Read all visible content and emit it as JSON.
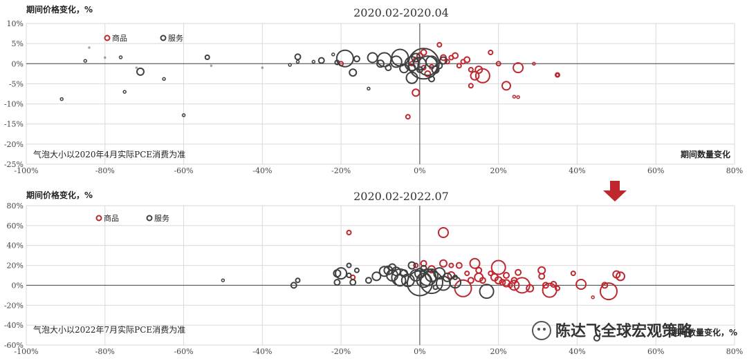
{
  "watermark": "陈达飞全球宏观策略",
  "chart_data": [
    {
      "type": "scatter",
      "title": "2020.02-2020.04",
      "ylabel": "期间价格变化，%",
      "xlabel": "期间数量变化",
      "note": "气泡大小以2020年4月实际PCE消费为准",
      "xlim": [
        -100,
        80
      ],
      "ylim": [
        -25,
        10
      ],
      "xticks": [
        "-100%",
        "-80%",
        "-60%",
        "-40%",
        "-20%",
        "0%",
        "20%",
        "40%",
        "60%",
        "80%"
      ],
      "yticks": [
        "10%",
        "5%",
        "0%",
        "-5%",
        "-10%",
        "-15%",
        "-20%",
        "-25%"
      ],
      "grid": "horizontal",
      "legend_position": "top-left",
      "series": [
        {
          "name": "商品",
          "color": "#c0262d",
          "points": [
            [
              -3,
              -13.2,
              3
            ],
            [
              -1,
              -7.2,
              5
            ],
            [
              1,
              2.8,
              4
            ],
            [
              2,
              -2.5,
              4
            ],
            [
              3,
              -0.8,
              3
            ],
            [
              5,
              4.7,
              3
            ],
            [
              6,
              1.5,
              4
            ],
            [
              7,
              0.5,
              3
            ],
            [
              8,
              1.5,
              3
            ],
            [
              9,
              2,
              4
            ],
            [
              10,
              -0.5,
              3
            ],
            [
              11,
              0.5,
              3
            ],
            [
              12,
              1,
              4
            ],
            [
              13,
              -5.5,
              3
            ],
            [
              13,
              -1.5,
              3
            ],
            [
              14,
              -3,
              6
            ],
            [
              15,
              -1.5,
              5
            ],
            [
              16,
              -3,
              10
            ],
            [
              18,
              2.8,
              3
            ],
            [
              20,
              0,
              3
            ],
            [
              22,
              -5.5,
              6
            ],
            [
              24,
              -8.2,
              2
            ],
            [
              25,
              -8.3,
              2
            ],
            [
              25,
              -1,
              7
            ],
            [
              29,
              0,
              2
            ],
            [
              35,
              -2.8,
              3
            ],
            [
              35,
              -2.8,
              2
            ],
            [
              -20,
              0,
              3
            ],
            [
              -2,
              0,
              3
            ],
            [
              -1,
              1,
              3
            ],
            [
              0,
              2,
              4
            ],
            [
              1,
              -1,
              3
            ]
          ]
        },
        {
          "name": "服务",
          "color": "#404040",
          "points": [
            [
              -91,
              -8.8,
              2
            ],
            [
              -85,
              0.7,
              2
            ],
            [
              -84,
              4,
              1
            ],
            [
              -80,
              1.5,
              1
            ],
            [
              -76,
              1.6,
              2
            ],
            [
              -75,
              -7,
              2
            ],
            [
              -72,
              -1,
              1
            ],
            [
              -71,
              -2,
              5
            ],
            [
              -65,
              -3.8,
              2
            ],
            [
              -60,
              -12.8,
              2
            ],
            [
              -54,
              1.6,
              3
            ],
            [
              -53,
              -0.5,
              1
            ],
            [
              -40,
              -1,
              1
            ],
            [
              -33,
              -0.3,
              2
            ],
            [
              -31,
              0.5,
              2
            ],
            [
              -31,
              1.7,
              4
            ],
            [
              -27,
              0.5,
              2
            ],
            [
              -25,
              0.8,
              4
            ],
            [
              -22,
              2.3,
              2
            ],
            [
              -21,
              0.3,
              3
            ],
            [
              -19,
              1.3,
              12
            ],
            [
              -17,
              -2.2,
              5
            ],
            [
              -16,
              1.2,
              4
            ],
            [
              -13,
              -6.2,
              2
            ],
            [
              -12,
              1.5,
              7
            ],
            [
              -10,
              0,
              5
            ],
            [
              -9,
              1,
              10
            ],
            [
              -8,
              -1,
              4
            ],
            [
              -6,
              0.5,
              8
            ],
            [
              -5,
              1.5,
              12
            ],
            [
              -4,
              -1.2,
              6
            ],
            [
              -2,
              0,
              10
            ],
            [
              -2,
              -3.5,
              8
            ],
            [
              -1,
              1.5,
              6
            ],
            [
              0,
              0,
              9
            ],
            [
              1,
              0,
              22
            ],
            [
              2,
              -0.5,
              14
            ],
            [
              3,
              0.5,
              8
            ],
            [
              4,
              -1.5,
              5
            ],
            [
              5,
              -0.5,
              4
            ],
            [
              3,
              -3.8,
              4
            ],
            [
              6,
              0.8,
              5
            ],
            [
              -2,
              -1,
              5
            ],
            [
              0,
              -1.5,
              4
            ]
          ]
        }
      ]
    },
    {
      "type": "scatter",
      "title": "2020.02-2022.07",
      "ylabel": "期间价格变化，%",
      "xlabel": "期间数量变化，%",
      "note": "气泡大小以2022年7月实际PCE消费为准",
      "xlim": [
        -100,
        80
      ],
      "ylim": [
        -60,
        80
      ],
      "xticks": [
        "-100%",
        "-80%",
        "-60%",
        "-40%",
        "-20%",
        "0%",
        "20%",
        "40%",
        "60%",
        "80%"
      ],
      "yticks": [
        "80%",
        "60%",
        "40%",
        "20%",
        "0%",
        "-20%",
        "-40%",
        "-60%"
      ],
      "grid": "horizontal",
      "legend_position": "top-left",
      "series": [
        {
          "name": "商品",
          "color": "#c0262d",
          "points": [
            [
              -18,
              53,
              3
            ],
            [
              6,
              53,
              7
            ],
            [
              1,
              22,
              4
            ],
            [
              6,
              22,
              5
            ],
            [
              8,
              20,
              3
            ],
            [
              10,
              20,
              4
            ],
            [
              12,
              12,
              3
            ],
            [
              13,
              5,
              4
            ],
            [
              14,
              22,
              7
            ],
            [
              15,
              15,
              4
            ],
            [
              15,
              8,
              6
            ],
            [
              16,
              5,
              4
            ],
            [
              18,
              12,
              3
            ],
            [
              19,
              8,
              5
            ],
            [
              20,
              18,
              10
            ],
            [
              20,
              5,
              5
            ],
            [
              21,
              3,
              4
            ],
            [
              22,
              10,
              4
            ],
            [
              22,
              2,
              5
            ],
            [
              23,
              0,
              3
            ],
            [
              24,
              0,
              7
            ],
            [
              24,
              5,
              4
            ],
            [
              25,
              13,
              4
            ],
            [
              26,
              0,
              11
            ],
            [
              28,
              -3,
              5
            ],
            [
              31,
              15,
              5
            ],
            [
              31,
              9,
              4
            ],
            [
              32,
              0,
              4
            ],
            [
              33,
              -5,
              10
            ],
            [
              34,
              1,
              4
            ],
            [
              35,
              -3,
              3
            ],
            [
              39,
              12,
              3
            ],
            [
              41,
              1,
              7
            ],
            [
              44,
              -12,
              2
            ],
            [
              47,
              0,
              4
            ],
            [
              48,
              -6,
              12
            ],
            [
              50,
              11,
              5
            ],
            [
              51,
              9,
              6
            ],
            [
              -1,
              20,
              3
            ],
            [
              3,
              16,
              5
            ],
            [
              8,
              10,
              5
            ],
            [
              11,
              -3,
              12
            ],
            [
              -17,
              8,
              3
            ]
          ]
        },
        {
          "name": "服务",
          "color": "#404040",
          "points": [
            [
              -50,
              5,
              2
            ],
            [
              -31,
              5,
              3
            ],
            [
              -32,
              0,
              4
            ],
            [
              -21,
              12,
              5
            ],
            [
              -21,
              3,
              4
            ],
            [
              -20,
              12,
              8
            ],
            [
              -18,
              20,
              3
            ],
            [
              -18,
              10,
              3
            ],
            [
              -17,
              3,
              4
            ],
            [
              -16,
              15,
              3
            ],
            [
              -13,
              5,
              4
            ],
            [
              -11,
              9,
              6
            ],
            [
              -9,
              14,
              7
            ],
            [
              -8,
              15,
              6
            ],
            [
              -7,
              18,
              5
            ],
            [
              -7,
              10,
              8
            ],
            [
              -6,
              14,
              6
            ],
            [
              -5,
              5,
              8
            ],
            [
              -4,
              12,
              5
            ],
            [
              -3,
              5,
              9
            ],
            [
              -2,
              20,
              5
            ],
            [
              -1,
              10,
              8
            ],
            [
              0,
              2,
              18
            ],
            [
              0,
              12,
              7
            ],
            [
              1,
              5,
              10
            ],
            [
              2,
              8,
              12
            ],
            [
              3,
              10,
              9
            ],
            [
              3,
              3,
              16
            ],
            [
              4,
              -2,
              3
            ],
            [
              5,
              12,
              8
            ],
            [
              6,
              2,
              10
            ],
            [
              7,
              8,
              6
            ],
            [
              9,
              3,
              8
            ],
            [
              9,
              8,
              3
            ],
            [
              17,
              -6,
              10
            ],
            [
              45,
              -53,
              4
            ],
            [
              1,
              17,
              4
            ],
            [
              -5,
              8,
              12
            ]
          ]
        }
      ]
    }
  ]
}
